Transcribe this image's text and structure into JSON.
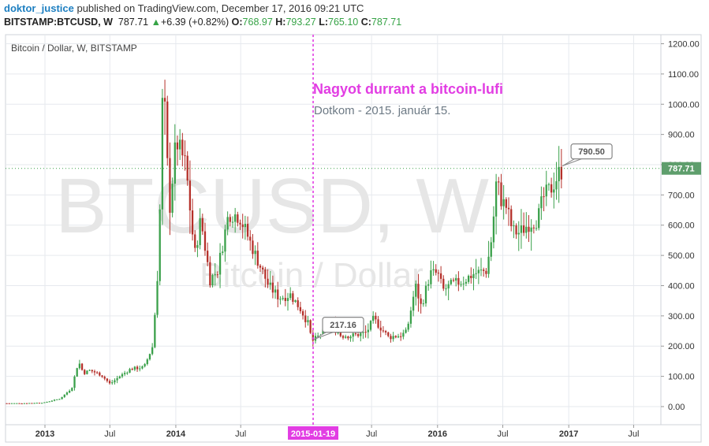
{
  "header": {
    "author": "doktor_justice",
    "published_text": " published on TradingView.com, December 17, 2016 09:21 UTC",
    "symbol": "BITSTAMP:BTCUSD, W",
    "last": "787.71",
    "change": "+6.39 (+0.82%)",
    "o_label": "O:",
    "o_value": "768.97",
    "h_label": "H:",
    "h_value": "793.27",
    "l_label": "L:",
    "l_value": "765.10",
    "c_label": "C:",
    "c_value": "787.71"
  },
  "colors": {
    "up": "#3aa04a",
    "down": "#b5302a",
    "marker": "#e23de3",
    "price_label_bg": "#5e9e6c",
    "grid": "#e6e9ee",
    "axis_text": "#333333",
    "watermark": "#e4e4e4"
  },
  "chart_data": {
    "type": "candlestick",
    "title": "Bitcoin / Dollar, W, BITSTAMP",
    "watermark_main": "BTCUSD, W",
    "watermark_sub": "Bitcoin / Dollar",
    "x_tick_labels": [
      "2013",
      "Jul",
      "2014",
      "Jul",
      "Jul",
      "2016",
      "Jul",
      "2017",
      "Jul"
    ],
    "x_tick_dates": [
      "2013-01-01",
      "2013-07-01",
      "2014-01-01",
      "2014-07-01",
      "2015-07-01",
      "2016-01-01",
      "2016-07-01",
      "2017-01-01",
      "2017-07-01"
    ],
    "y_ticks": [
      "0.00",
      "100.00",
      "200.00",
      "300.00",
      "400.00",
      "500.00",
      "600.00",
      "700.00",
      "800.00",
      "900.00",
      "1000.00",
      "1100.00",
      "1200.00"
    ],
    "y_tick_values": [
      0,
      100,
      200,
      300,
      400,
      500,
      600,
      700,
      800,
      900,
      1000,
      1100,
      1200
    ],
    "ylim": [
      -60,
      1230
    ],
    "x_range": [
      "2012-09-13",
      "2017-09-15"
    ],
    "last_price": 787.71,
    "last_price_label": "787.71",
    "marker": {
      "date": "2015-01-19",
      "label": "2015-01-19",
      "headline": "Nagyot durrant a bitcoin-lufi",
      "subline": "Dotkom - 2015. január 15."
    },
    "callouts": [
      {
        "label": "217.16",
        "date": "2015-01-19",
        "value": 217.16
      },
      {
        "label": "790.50",
        "date": "2016-12-12",
        "value": 790.5
      }
    ],
    "price_path": [
      [
        "2012-09-13",
        11
      ],
      [
        "2012-11-01",
        11
      ],
      [
        "2013-01-01",
        13
      ],
      [
        "2013-02-15",
        26
      ],
      [
        "2013-03-20",
        60
      ],
      [
        "2013-04-08",
        150
      ],
      [
        "2013-04-22",
        110
      ],
      [
        "2013-05-10",
        120
      ],
      [
        "2013-06-10",
        105
      ],
      [
        "2013-07-05",
        75
      ],
      [
        "2013-08-01",
        100
      ],
      [
        "2013-09-01",
        125
      ],
      [
        "2013-10-08",
        130
      ],
      [
        "2013-11-01",
        200
      ],
      [
        "2013-11-18",
        500
      ],
      [
        "2013-11-30",
        1100
      ],
      [
        "2013-12-18",
        650
      ],
      [
        "2014-01-05",
        880
      ],
      [
        "2014-02-01",
        800
      ],
      [
        "2014-02-26",
        500
      ],
      [
        "2014-03-15",
        620
      ],
      [
        "2014-04-10",
        420
      ],
      [
        "2014-05-01",
        450
      ],
      [
        "2014-06-01",
        640
      ],
      [
        "2014-07-01",
        630
      ],
      [
        "2014-08-15",
        500
      ],
      [
        "2014-09-20",
        400
      ],
      [
        "2014-10-20",
        360
      ],
      [
        "2014-11-20",
        370
      ],
      [
        "2014-12-20",
        320
      ],
      [
        "2015-01-10",
        270
      ],
      [
        "2015-01-19",
        215
      ],
      [
        "2015-02-15",
        240
      ],
      [
        "2015-03-10",
        275
      ],
      [
        "2015-04-10",
        235
      ],
      [
        "2015-05-15",
        235
      ],
      [
        "2015-06-20",
        245
      ],
      [
        "2015-07-10",
        290
      ],
      [
        "2015-08-20",
        230
      ],
      [
        "2015-09-20",
        235
      ],
      [
        "2015-10-10",
        245
      ],
      [
        "2015-11-04",
        400
      ],
      [
        "2015-11-20",
        330
      ],
      [
        "2015-12-15",
        440
      ],
      [
        "2016-01-05",
        440
      ],
      [
        "2016-01-20",
        385
      ],
      [
        "2016-02-15",
        405
      ],
      [
        "2016-03-15",
        415
      ],
      [
        "2016-04-15",
        440
      ],
      [
        "2016-05-20",
        450
      ],
      [
        "2016-06-05",
        570
      ],
      [
        "2016-06-17",
        750
      ],
      [
        "2016-07-01",
        680
      ],
      [
        "2016-07-15",
        660
      ],
      [
        "2016-08-01",
        580
      ],
      [
        "2016-08-20",
        575
      ],
      [
        "2016-09-15",
        605
      ],
      [
        "2016-10-10",
        620
      ],
      [
        "2016-10-25",
        690
      ],
      [
        "2016-11-15",
        720
      ],
      [
        "2016-12-12",
        780
      ]
    ]
  }
}
